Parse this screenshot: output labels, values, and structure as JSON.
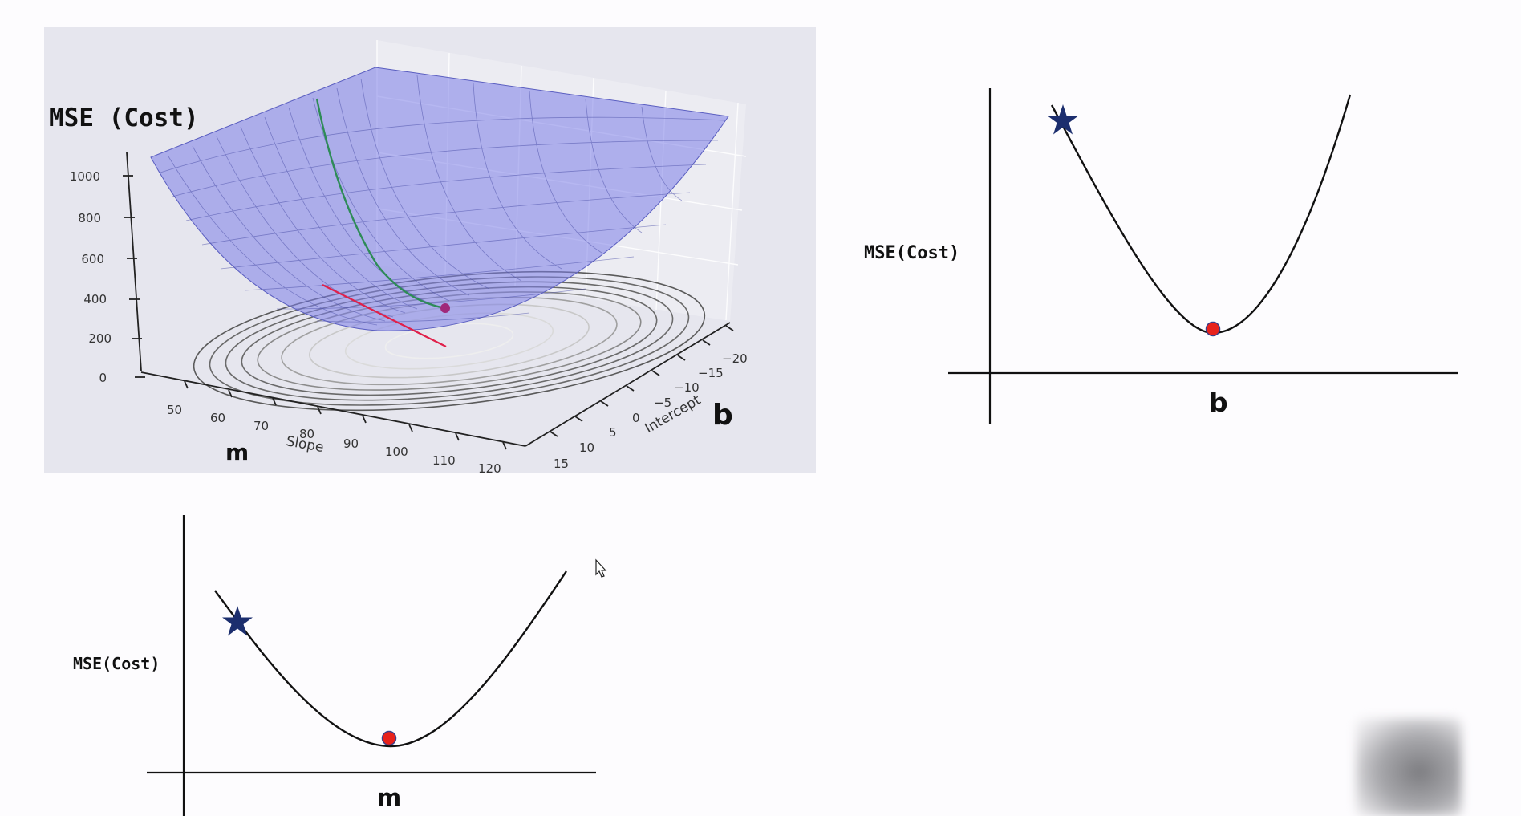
{
  "surface_plot": {
    "zlabel": "MSE (Cost)",
    "z_ticks": [
      "1000",
      "800",
      "600",
      "400",
      "200",
      "0"
    ],
    "slope_label": "Slope",
    "slope_ticks": [
      "50",
      "60",
      "70",
      "80",
      "90",
      "100",
      "110",
      "120"
    ],
    "intercept_label": "Intercept",
    "intercept_ticks": [
      "15",
      "10",
      "5",
      "0",
      "−5",
      "−10",
      "−15",
      "−20"
    ],
    "m_label": "m",
    "b_label": "b",
    "colors": {
      "surface": "#7b7ee8",
      "path_green": "#2e8b57",
      "path_red": "#e0204a",
      "minimum_point": "#a0287a"
    }
  },
  "b_curve": {
    "ylabel": "MSE(Cost)",
    "xlabel": "b",
    "start_marker": "star-icon",
    "minimum_marker": "red-dot-icon"
  },
  "m_curve": {
    "ylabel": "MSE(Cost)",
    "xlabel": "m",
    "start_marker": "star-icon",
    "minimum_marker": "red-dot-icon"
  },
  "colors": {
    "star": "#1c2e6e",
    "dot": "#e8221c"
  }
}
